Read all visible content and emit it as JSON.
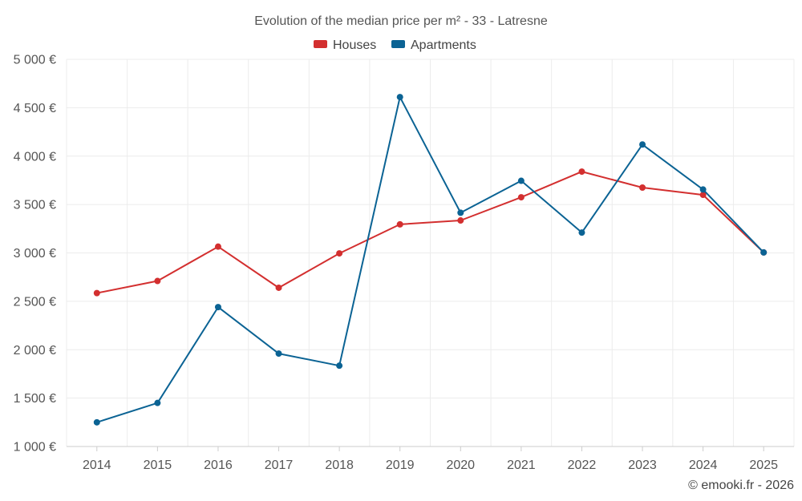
{
  "chart_data": {
    "type": "line",
    "title": "Evolution of the median price per m² - 33 - Latresne",
    "categories": [
      "2014",
      "2015",
      "2016",
      "2017",
      "2018",
      "2019",
      "2020",
      "2021",
      "2022",
      "2023",
      "2024",
      "2025"
    ],
    "ylim": [
      1000,
      5000
    ],
    "yticks": [
      1000,
      1500,
      2000,
      2500,
      3000,
      3500,
      4000,
      4500,
      5000
    ],
    "ytick_labels": [
      "1 000 €",
      "1 500 €",
      "2 000 €",
      "2 500 €",
      "3 000 €",
      "3 500 €",
      "4 000 €",
      "4 500 €",
      "5 000 €"
    ],
    "grid": true,
    "legend_position": "top-center",
    "series": [
      {
        "name": "Houses",
        "color": "#d32f2f",
        "values": [
          2585,
          2710,
          3065,
          2640,
          2995,
          3295,
          3335,
          3575,
          3840,
          3675,
          3600,
          3005
        ]
      },
      {
        "name": "Apartments",
        "color": "#0b6394",
        "values": [
          1250,
          1450,
          2440,
          1960,
          1835,
          4610,
          3415,
          3745,
          3210,
          4120,
          3655,
          3005
        ]
      }
    ]
  },
  "credit": "© emooki.fr - 2026"
}
